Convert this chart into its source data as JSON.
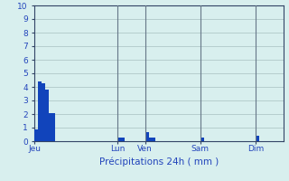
{
  "title": "Précipitations 24h ( mm )",
  "background_color": "#d8efee",
  "bar_color": "#1144bb",
  "grid_color": "#b0c8c8",
  "ylim": [
    0,
    10
  ],
  "yticks": [
    0,
    1,
    2,
    3,
    4,
    5,
    6,
    7,
    8,
    9,
    10
  ],
  "tick_label_color": "#2244bb",
  "title_color": "#2244bb",
  "bar_values": [
    0.9,
    4.4,
    4.3,
    3.8,
    2.1,
    2.1,
    0,
    0,
    0,
    0,
    0,
    0,
    0,
    0,
    0,
    0,
    0,
    0,
    0,
    0,
    0,
    0,
    0,
    0,
    0.3,
    0.3,
    0,
    0,
    0,
    0,
    0,
    0,
    0.7,
    0.3,
    0.3,
    0,
    0,
    0,
    0,
    0,
    0,
    0,
    0,
    0,
    0,
    0,
    0,
    0,
    0.3,
    0,
    0,
    0,
    0,
    0,
    0,
    0,
    0,
    0,
    0,
    0,
    0,
    0,
    0,
    0,
    0.4,
    0,
    0,
    0,
    0,
    0,
    0,
    0
  ],
  "n_bars": 72,
  "day_labels": [
    "Jeu",
    "Lun",
    "Ven",
    "Sam",
    "Dim"
  ],
  "day_positions": [
    0,
    24,
    32,
    48,
    64
  ],
  "vline_positions": [
    24,
    32,
    48,
    64
  ],
  "vline_color": "#667788",
  "spine_color": "#334466",
  "axis_color": "#223366"
}
